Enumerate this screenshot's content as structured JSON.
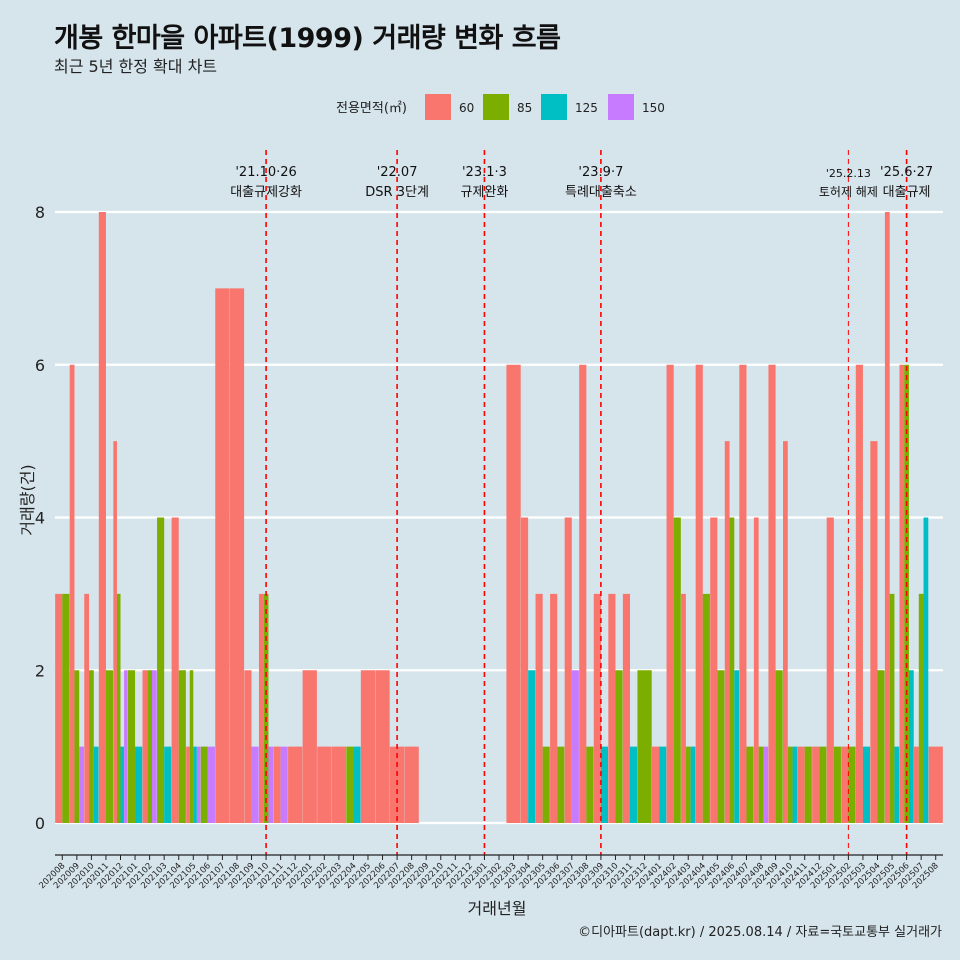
{
  "title": "개봉 한마을 아파트(1999) 거래량 변화 흐름",
  "subtitle": "최근 5년 한정 확대 차트",
  "caption": "©디아파트(dapt.kr) / 2025.08.14 / 자료=국토교통부 실거래가",
  "chart_data": {
    "type": "bar",
    "xlabel": "거래년월",
    "ylabel": "거래량(건)",
    "ylim": [
      0,
      8
    ],
    "yticks": [
      0,
      2,
      4,
      6,
      8
    ],
    "legend": {
      "title": "전용면적(㎡)",
      "position": "top",
      "entries": [
        {
          "name": "60",
          "color": "#F8766D"
        },
        {
          "name": "85",
          "color": "#7CAE00"
        },
        {
          "name": "125",
          "color": "#00BFC4"
        },
        {
          "name": "150",
          "color": "#C77CFF"
        }
      ]
    },
    "categories": [
      "202008",
      "202009",
      "202010",
      "202011",
      "202012",
      "202101",
      "202102",
      "202103",
      "202104",
      "202105",
      "202106",
      "202107",
      "202108",
      "202109",
      "202110",
      "202111",
      "202112",
      "202201",
      "202202",
      "202203",
      "202204",
      "202205",
      "202206",
      "202207",
      "202208",
      "202209",
      "202210",
      "202211",
      "202212",
      "202301",
      "202302",
      "202303",
      "202304",
      "202305",
      "202306",
      "202307",
      "202308",
      "202309",
      "202310",
      "202311",
      "202312",
      "202401",
      "202402",
      "202403",
      "202404",
      "202405",
      "202406",
      "202407",
      "202408",
      "202409",
      "202410",
      "202411",
      "202412",
      "202501",
      "202502",
      "202503",
      "202504",
      "202505",
      "202506",
      "202507",
      "202508"
    ],
    "series": [
      {
        "name": "60",
        "values": [
          3,
          6,
          3,
          8,
          5,
          0,
          2,
          0,
          4,
          1,
          0,
          7,
          7,
          2,
          3,
          1,
          1,
          2,
          1,
          1,
          0,
          2,
          2,
          1,
          1,
          0,
          0,
          0,
          0,
          0,
          0,
          6,
          4,
          3,
          3,
          4,
          6,
          3,
          3,
          3,
          0,
          1,
          6,
          3,
          6,
          4,
          5,
          6,
          4,
          6,
          5,
          1,
          1,
          4,
          1,
          6,
          5,
          8,
          6,
          1,
          1
        ]
      },
      {
        "name": "85",
        "values": [
          3,
          2,
          2,
          2,
          3,
          2,
          2,
          4,
          2,
          2,
          1,
          0,
          0,
          0,
          3,
          0,
          0,
          0,
          0,
          0,
          1,
          0,
          0,
          0,
          0,
          0,
          0,
          0,
          0,
          0,
          0,
          0,
          0,
          1,
          1,
          0,
          1,
          0,
          2,
          0,
          2,
          0,
          4,
          1,
          3,
          2,
          4,
          1,
          1,
          2,
          1,
          1,
          1,
          1,
          1,
          0,
          2,
          3,
          6,
          3,
          0
        ]
      },
      {
        "name": "125",
        "values": [
          0,
          0,
          1,
          0,
          1,
          1,
          0,
          1,
          0,
          1,
          0,
          0,
          0,
          0,
          0,
          0,
          0,
          0,
          0,
          0,
          1,
          0,
          0,
          0,
          0,
          0,
          0,
          0,
          0,
          0,
          0,
          0,
          2,
          0,
          0,
          0,
          0,
          1,
          0,
          1,
          0,
          1,
          0,
          1,
          0,
          0,
          2,
          0,
          0,
          0,
          1,
          0,
          0,
          0,
          0,
          1,
          0,
          1,
          2,
          4,
          0
        ]
      },
      {
        "name": "150",
        "values": [
          0,
          1,
          0,
          0,
          2,
          0,
          2,
          0,
          0,
          1,
          1,
          0,
          0,
          1,
          1,
          1,
          0,
          0,
          0,
          0,
          0,
          0,
          0,
          0,
          0,
          0,
          0,
          0,
          0,
          0,
          0,
          0,
          0,
          0,
          0,
          2,
          0,
          0,
          0,
          0,
          0,
          0,
          0,
          0,
          0,
          0,
          0,
          0,
          1,
          0,
          0,
          0,
          0,
          0,
          0,
          0,
          0,
          0,
          0,
          0,
          0
        ]
      }
    ],
    "annotations": [
      {
        "x": "202110",
        "date": "'21.10·26",
        "label": "대출규제강화"
      },
      {
        "x": "202207",
        "date": "'22.07",
        "label": "DSR 3단계"
      },
      {
        "x": "202301",
        "date": "'23.1·3",
        "label": "규제완화"
      },
      {
        "x": "202309",
        "date": "'23.9·7",
        "label": "특례대출축소"
      },
      {
        "x": "202502",
        "date": "'25.2.13",
        "label": "토허제 해제"
      },
      {
        "x": "202506",
        "date": "'25.6·27",
        "label": "대출규제"
      }
    ]
  }
}
